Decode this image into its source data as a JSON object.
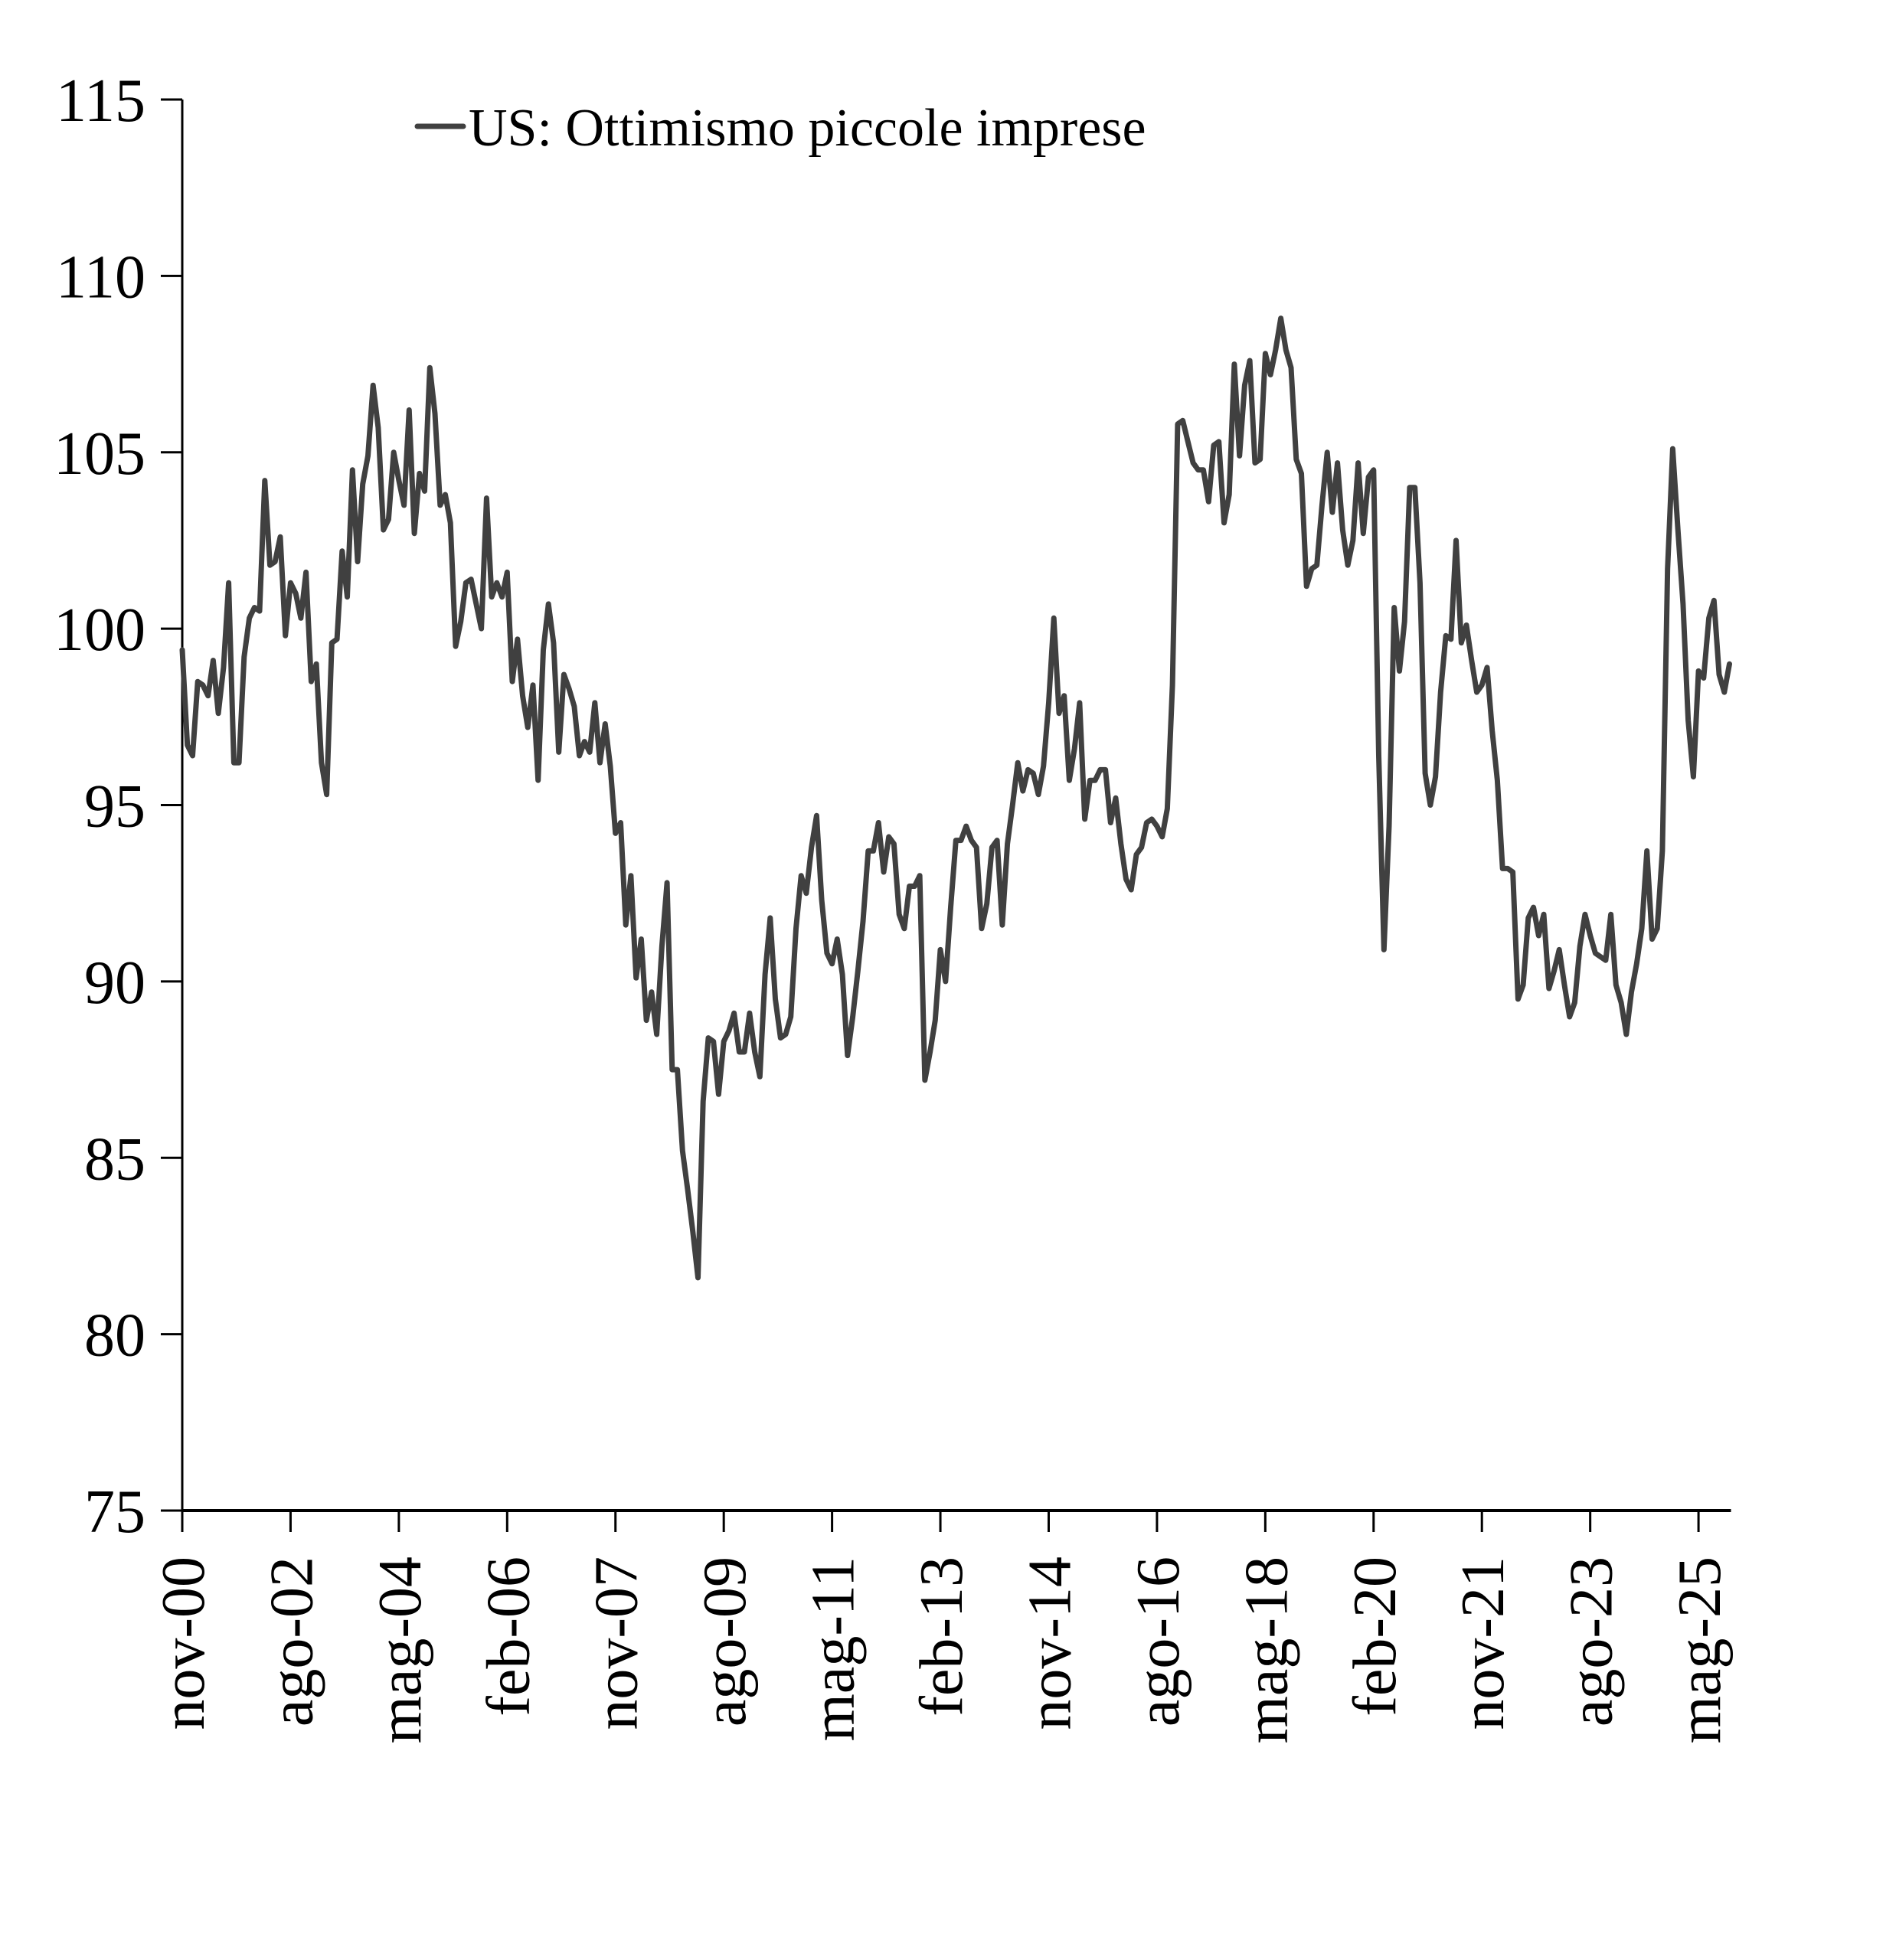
{
  "chart_data": {
    "type": "line",
    "title": "",
    "xlabel": "",
    "ylabel": "",
    "ylim": [
      75,
      115
    ],
    "yticks": [
      75,
      80,
      85,
      90,
      95,
      100,
      105,
      110,
      115
    ],
    "xtick_labels": [
      "nov-00",
      "ago-02",
      "mag-04",
      "feb-06",
      "nov-07",
      "ago-09",
      "mag-11",
      "feb-13",
      "nov-14",
      "ago-16",
      "mag-18",
      "feb-20",
      "nov-21",
      "ago-23",
      "mag-25"
    ],
    "xtick_interval_months": 21,
    "start": "nov-00",
    "frequency": "monthly",
    "grid": false,
    "legend_position": "top-center",
    "series": [
      {
        "name": "US: Ottimismo piccole imprese",
        "color": "#404040",
        "values": [
          99.4,
          96.7,
          96.4,
          98.5,
          98.4,
          98.1,
          99.1,
          97.6,
          98.9,
          101.3,
          96.2,
          96.2,
          99.2,
          100.3,
          100.6,
          100.5,
          104.2,
          101.8,
          101.9,
          102.6,
          99.8,
          101.3,
          101.0,
          100.3,
          101.6,
          98.5,
          99.0,
          96.2,
          95.3,
          99.6,
          99.7,
          102.2,
          100.9,
          104.5,
          101.9,
          104.1,
          104.9,
          106.9,
          105.7,
          102.8,
          103.1,
          105.0,
          104.2,
          103.5,
          106.2,
          102.7,
          104.4,
          103.9,
          107.4,
          106.1,
          103.5,
          103.8,
          103.0,
          99.5,
          100.2,
          101.3,
          101.4,
          100.7,
          100.0,
          103.7,
          100.9,
          101.3,
          100.9,
          101.6,
          98.5,
          99.7,
          98.1,
          97.2,
          98.4,
          95.7,
          99.4,
          100.7,
          99.6,
          96.5,
          98.7,
          98.3,
          97.8,
          96.4,
          96.8,
          96.5,
          97.9,
          96.2,
          97.3,
          96.1,
          94.2,
          94.5,
          91.6,
          93.0,
          90.1,
          91.2,
          88.9,
          89.7,
          88.5,
          91.0,
          92.8,
          87.5,
          87.5,
          85.2,
          84.1,
          82.9,
          81.6,
          86.6,
          88.4,
          88.3,
          86.8,
          88.3,
          88.6,
          89.1,
          88.0,
          88.0,
          89.1,
          88.0,
          87.3,
          90.2,
          91.8,
          89.5,
          88.4,
          88.5,
          89.0,
          91.5,
          93.0,
          92.5,
          93.8,
          94.7,
          92.3,
          90.8,
          90.5,
          91.2,
          90.2,
          87.9,
          89.0,
          90.3,
          91.7,
          93.7,
          93.7,
          94.5,
          93.1,
          94.1,
          93.9,
          91.9,
          91.5,
          92.7,
          92.7,
          93.0,
          87.2,
          88.0,
          88.9,
          90.9,
          90.0,
          92.1,
          94.0,
          94.0,
          94.4,
          94.0,
          93.8,
          91.5,
          92.2,
          93.8,
          94.0,
          91.6,
          93.9,
          95.0,
          96.2,
          95.4,
          96.0,
          95.9,
          95.3,
          96.1,
          97.9,
          100.3,
          97.6,
          98.1,
          95.7,
          96.6,
          97.9,
          94.6,
          95.7,
          95.7,
          96.0,
          96.0,
          94.5,
          95.2,
          93.9,
          92.9,
          92.6,
          93.6,
          93.8,
          94.5,
          94.6,
          94.4,
          94.1,
          94.9,
          98.4,
          105.8,
          105.9,
          105.3,
          104.7,
          104.5,
          104.5,
          103.6,
          105.2,
          105.3,
          103.0,
          103.8,
          107.5,
          104.9,
          106.9,
          107.6,
          104.7,
          104.8,
          107.8,
          107.2,
          107.9,
          108.8,
          107.9,
          107.4,
          104.8,
          104.4,
          101.2,
          101.7,
          101.8,
          103.5,
          105.0,
          103.3,
          104.7,
          102.8,
          101.8,
          102.5,
          104.7,
          102.7,
          104.3,
          104.5,
          96.4,
          90.9,
          94.4,
          100.6,
          98.8,
          100.2,
          104.0,
          104.0,
          101.3,
          95.9,
          95.0,
          95.8,
          98.2,
          99.8,
          99.7,
          102.5,
          99.6,
          100.1,
          99.1,
          98.2,
          98.4,
          98.9,
          97.1,
          95.7,
          93.2,
          93.2,
          93.1,
          89.5,
          89.9,
          91.8,
          92.1,
          91.3,
          91.9,
          89.8,
          90.3,
          90.9,
          89.9,
          89.0,
          89.4,
          91.0,
          91.9,
          91.3,
          90.8,
          90.7,
          90.6,
          91.9,
          89.9,
          89.4,
          88.5,
          89.7,
          90.5,
          91.5,
          93.7,
          91.2,
          91.5,
          93.7,
          101.7,
          105.1,
          102.8,
          100.7,
          97.4,
          95.8,
          98.8,
          98.6,
          100.3,
          100.8,
          98.7,
          98.2,
          99.0
        ]
      }
    ]
  }
}
